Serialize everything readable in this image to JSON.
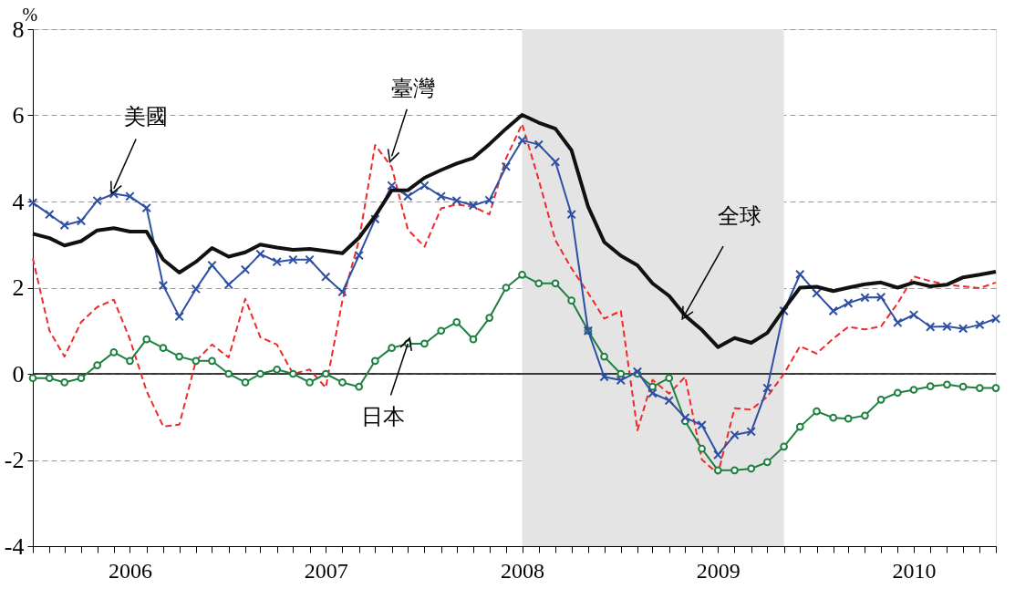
{
  "chart_data": {
    "type": "line",
    "ylabel": "%",
    "x": [
      "2006-01",
      "2006-02",
      "2006-03",
      "2006-04",
      "2006-05",
      "2006-06",
      "2006-07",
      "2006-08",
      "2006-09",
      "2006-10",
      "2006-11",
      "2006-12",
      "2007-01",
      "2007-02",
      "2007-03",
      "2007-04",
      "2007-05",
      "2007-06",
      "2007-07",
      "2007-08",
      "2007-09",
      "2007-10",
      "2007-11",
      "2007-12",
      "2008-01",
      "2008-02",
      "2008-03",
      "2008-04",
      "2008-05",
      "2008-06",
      "2008-07",
      "2008-08",
      "2008-09",
      "2008-10",
      "2008-11",
      "2008-12",
      "2009-01",
      "2009-02",
      "2009-03",
      "2009-04",
      "2009-05",
      "2009-06",
      "2009-07",
      "2009-08",
      "2009-09",
      "2009-10",
      "2009-11",
      "2009-12",
      "2010-01",
      "2010-02",
      "2010-03",
      "2010-04",
      "2010-05",
      "2010-06",
      "2010-07",
      "2010-08",
      "2010-09",
      "2010-10",
      "2010-11",
      "2010-12"
    ],
    "series": [
      {
        "color": "#ee2a2a",
        "line_style": "dashed",
        "marker": "none",
        "values": [
          2.68,
          1.0,
          0.4,
          1.2,
          1.55,
          1.72,
          0.8,
          -0.4,
          -1.22,
          -1.18,
          0.3,
          0.68,
          0.38,
          1.74,
          0.85,
          0.68,
          0.0,
          0.1,
          -0.32,
          1.7,
          3.1,
          5.31,
          4.8,
          3.35,
          2.95,
          3.84,
          3.93,
          3.88,
          3.7,
          5.0,
          5.8,
          4.5,
          3.1,
          2.45,
          1.88,
          1.28,
          1.46,
          -1.31,
          -0.14,
          -0.46,
          -0.07,
          -1.99,
          -2.32,
          -0.8,
          -0.83,
          -0.53,
          0.0,
          0.64,
          0.47,
          0.82,
          1.09,
          1.03,
          1.1,
          1.64,
          2.26,
          2.15,
          2.07,
          2.03,
          1.99,
          2.12
        ]
      },
      {
        "color": "#1e8040",
        "line_style": "solid",
        "marker": "circle",
        "values": [
          -0.1,
          -0.1,
          -0.2,
          -0.1,
          0.2,
          0.5,
          0.3,
          0.8,
          0.6,
          0.4,
          0.3,
          0.3,
          0.0,
          -0.2,
          0.0,
          0.1,
          0.0,
          -0.2,
          0.0,
          -0.2,
          -0.3,
          0.3,
          0.6,
          0.7,
          0.7,
          1.0,
          1.2,
          0.8,
          1.3,
          2.0,
          2.3,
          2.1,
          2.1,
          1.7,
          1.0,
          0.4,
          0.0,
          0.0,
          -0.3,
          -0.1,
          -1.1,
          -1.74,
          -2.24,
          -2.24,
          -2.2,
          -2.05,
          -1.69,
          -1.23,
          -0.87,
          -1.02,
          -1.04,
          -0.97,
          -0.6,
          -0.44,
          -0.37,
          -0.29,
          -0.25,
          -0.3,
          -0.33,
          -0.33
        ]
      },
      {
        "color": "#2e4fa3",
        "line_style": "solid",
        "marker": "cross",
        "values": [
          3.97,
          3.7,
          3.45,
          3.55,
          4.02,
          4.18,
          4.12,
          3.85,
          2.05,
          1.33,
          1.97,
          2.52,
          2.07,
          2.42,
          2.78,
          2.6,
          2.65,
          2.65,
          2.25,
          1.9,
          2.75,
          3.59,
          4.37,
          4.12,
          4.37,
          4.12,
          4.02,
          3.91,
          4.03,
          4.81,
          5.42,
          5.32,
          4.92,
          3.7,
          1.0,
          -0.07,
          -0.15,
          0.05,
          -0.45,
          -0.62,
          -1.02,
          -1.19,
          -1.88,
          -1.42,
          -1.34,
          -0.33,
          1.46,
          2.31,
          1.87,
          1.46,
          1.64,
          1.77,
          1.78,
          1.19,
          1.37,
          1.09,
          1.1,
          1.05,
          1.14,
          1.28
        ]
      },
      {
        "color": "#111111",
        "line_style": "solid",
        "marker": "none",
        "values": [
          3.25,
          3.15,
          2.98,
          3.08,
          3.33,
          3.38,
          3.3,
          3.3,
          2.65,
          2.35,
          2.6,
          2.92,
          2.72,
          2.82,
          3.0,
          2.93,
          2.88,
          2.9,
          2.85,
          2.8,
          3.16,
          3.66,
          4.26,
          4.26,
          4.55,
          4.73,
          4.88,
          5.01,
          5.33,
          5.69,
          6.01,
          5.83,
          5.69,
          5.19,
          3.88,
          3.06,
          2.74,
          2.52,
          2.1,
          1.81,
          1.35,
          1.02,
          0.62,
          0.83,
          0.72,
          0.95,
          1.5,
          2.0,
          2.02,
          1.92,
          2.0,
          2.08,
          2.12,
          2.0,
          2.12,
          2.03,
          2.07,
          2.24,
          2.3,
          2.37
        ]
      }
    ],
    "xlim": [
      "2006-01",
      "2010-12"
    ],
    "xticks": [
      {
        "value": "2006-01",
        "label": null
      },
      {
        "value": "2006-02",
        "label": null
      },
      {
        "value": "2006-03",
        "label": null
      },
      {
        "value": "2006-04",
        "label": null
      },
      {
        "value": "2006-05",
        "label": null
      },
      {
        "value": "2006-06",
        "label": null
      },
      {
        "value": "2006-07",
        "label": "2006"
      },
      {
        "value": "2006-08",
        "label": null
      },
      {
        "value": "2006-09",
        "label": null
      },
      {
        "value": "2006-10",
        "label": null
      },
      {
        "value": "2006-11",
        "label": null
      },
      {
        "value": "2006-12",
        "label": null
      },
      {
        "value": "2007-01",
        "label": null
      },
      {
        "value": "2007-02",
        "label": null
      },
      {
        "value": "2007-03",
        "label": null
      },
      {
        "value": "2007-04",
        "label": null
      },
      {
        "value": "2007-05",
        "label": null
      },
      {
        "value": "2007-06",
        "label": null
      },
      {
        "value": "2007-07",
        "label": "2007"
      },
      {
        "value": "2007-08",
        "label": null
      },
      {
        "value": "2007-09",
        "label": null
      },
      {
        "value": "2007-10",
        "label": null
      },
      {
        "value": "2007-11",
        "label": null
      },
      {
        "value": "2007-12",
        "label": null
      },
      {
        "value": "2008-01",
        "label": null
      },
      {
        "value": "2008-02",
        "label": null
      },
      {
        "value": "2008-03",
        "label": null
      },
      {
        "value": "2008-04",
        "label": null
      },
      {
        "value": "2008-05",
        "label": null
      },
      {
        "value": "2008-06",
        "label": null
      },
      {
        "value": "2008-07",
        "label": "2008"
      },
      {
        "value": "2008-08",
        "label": null
      },
      {
        "value": "2008-09",
        "label": null
      },
      {
        "value": "2008-10",
        "label": null
      },
      {
        "value": "2008-11",
        "label": null
      },
      {
        "value": "2008-12",
        "label": null
      },
      {
        "value": "2009-01",
        "label": null
      },
      {
        "value": "2009-02",
        "label": null
      },
      {
        "value": "2009-03",
        "label": null
      },
      {
        "value": "2009-04",
        "label": null
      },
      {
        "value": "2009-05",
        "label": null
      },
      {
        "value": "2009-06",
        "label": null
      },
      {
        "value": "2009-07",
        "label": "2009"
      },
      {
        "value": "2009-08",
        "label": null
      },
      {
        "value": "2009-09",
        "label": null
      },
      {
        "value": "2009-10",
        "label": null
      },
      {
        "value": "2009-11",
        "label": null
      },
      {
        "value": "2009-12",
        "label": null
      },
      {
        "value": "2010-01",
        "label": null
      },
      {
        "value": "2010-02",
        "label": null
      },
      {
        "value": "2010-03",
        "label": null
      },
      {
        "value": "2010-04",
        "label": null
      },
      {
        "value": "2010-05",
        "label": null
      },
      {
        "value": "2010-06",
        "label": null
      },
      {
        "value": "2010-07",
        "label": "2010"
      },
      {
        "value": "2010-08",
        "label": null
      },
      {
        "value": "2010-09",
        "label": null
      },
      {
        "value": "2010-10",
        "label": null
      },
      {
        "value": "2010-11",
        "label": null
      },
      {
        "value": "2010-12",
        "label": null
      }
    ],
    "ylim": [
      -4,
      8
    ],
    "yticks": [
      -4,
      -2,
      0,
      2,
      4,
      6,
      8
    ],
    "grid": "y",
    "legend": false,
    "ref_lines": [
      {
        "axis": "y",
        "value": 0,
        "color": "#000000"
      }
    ],
    "bands": [
      {
        "axis": "x",
        "from": "2008-07",
        "to": "2009-11",
        "color": "#e4e4e4"
      }
    ],
    "annotations": [
      {
        "text": "美國",
        "x": "2006-06",
        "y": 4.3
      },
      {
        "text": "臺灣",
        "x": "2007-11",
        "y": 5.05
      },
      {
        "text": "全球",
        "x": "2009-05",
        "y": 1.39
      },
      {
        "text": "日本",
        "x": "2007-12",
        "y": 0.7
      }
    ]
  }
}
